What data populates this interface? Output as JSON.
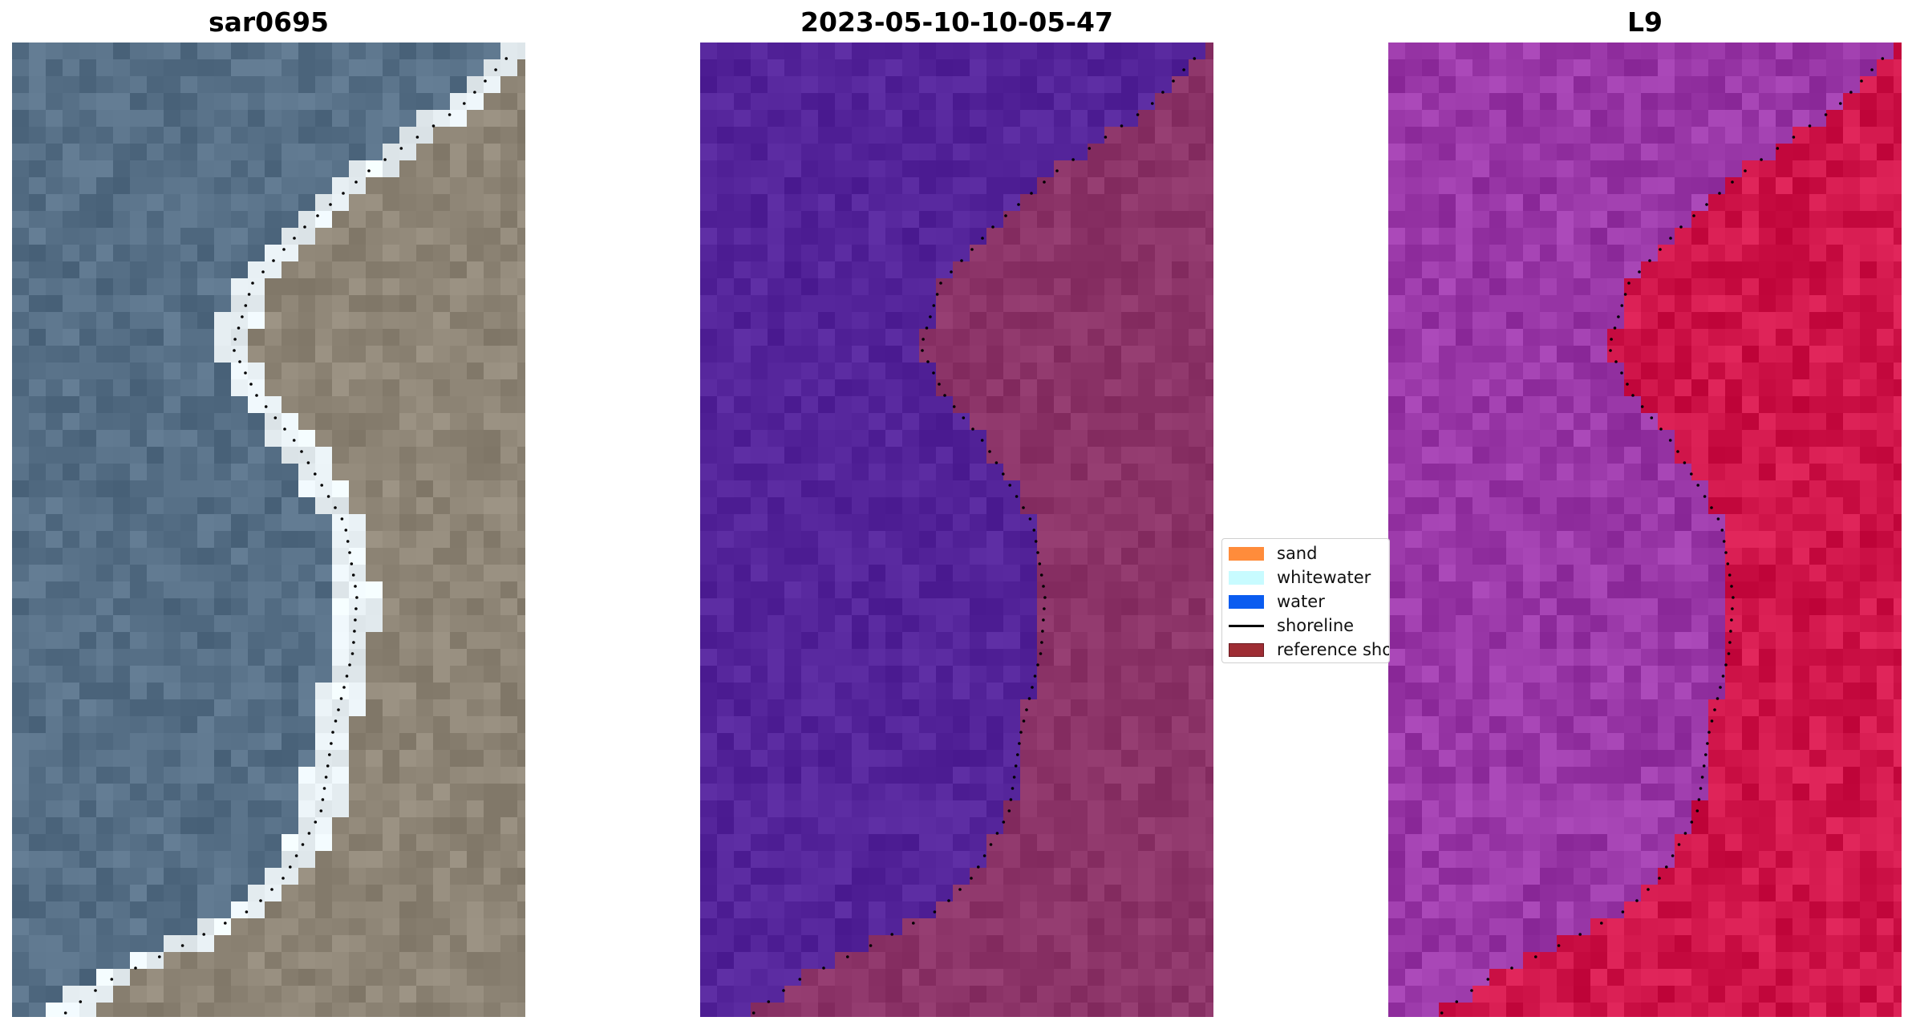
{
  "panels": [
    {
      "title": "sar0695",
      "kind": "rgb"
    },
    {
      "title": "2023-05-10-10-05-47",
      "kind": "classified"
    },
    {
      "title": "L9",
      "kind": "index"
    }
  ],
  "legend": {
    "items": [
      {
        "label": "sand",
        "color": "#ff8c3b",
        "type": "patch"
      },
      {
        "label": "whitewater",
        "color": "#c8fbff",
        "type": "patch"
      },
      {
        "label": "water",
        "color": "#0a5cf0",
        "type": "patch"
      },
      {
        "label": "shoreline",
        "color": "#000000",
        "type": "line"
      },
      {
        "label": "reference shoreline",
        "color": "#9e2d34",
        "type": "patch"
      }
    ]
  },
  "colors": {
    "rgb_sea": "#566f86",
    "rgb_land": "#8e8576",
    "rgb_white": "#e8f0f4",
    "class_water": "#54249a",
    "class_land": "#8c3468",
    "index_water": "#9a38a8",
    "index_land": "#d0154a",
    "shoreline_dots": "#000000"
  }
}
